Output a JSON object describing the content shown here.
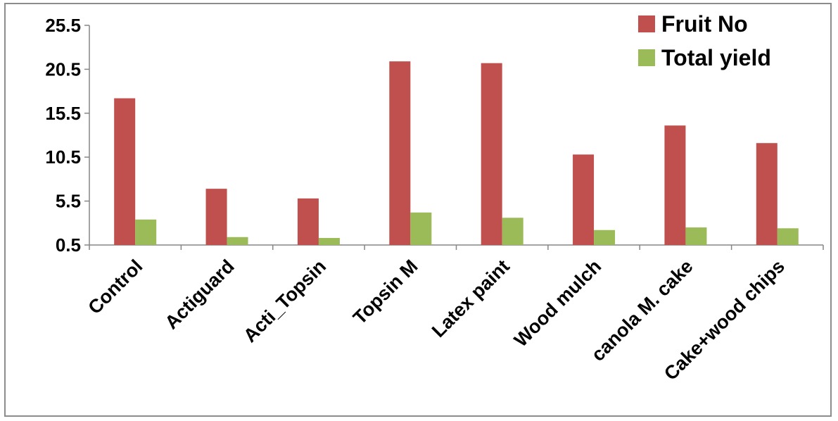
{
  "chart_data": {
    "type": "bar",
    "categories": [
      "Control",
      "Actiguard",
      "Acti_Topsin",
      "Topsin M",
      "Latex paint",
      "Wood mulch",
      "canola M. cake",
      "Cake+wood chips"
    ],
    "series": [
      {
        "name": "Fruit No",
        "color": "#c0504d",
        "values": [
          17.2,
          6.9,
          5.8,
          21.4,
          21.2,
          10.8,
          14.1,
          12.1
        ]
      },
      {
        "name": "Total yield",
        "color": "#9bbb59",
        "values": [
          3.4,
          1.4,
          1.3,
          4.2,
          3.6,
          2.2,
          2.5,
          2.4
        ]
      }
    ],
    "yticks": [
      "0.5",
      "5.5",
      "10.5",
      "15.5",
      "20.5",
      "25.5"
    ],
    "ylim": [
      0.5,
      25.5
    ],
    "xlabel": "",
    "ylabel": "",
    "title": "",
    "grid": false,
    "legend_position": "top-right"
  }
}
